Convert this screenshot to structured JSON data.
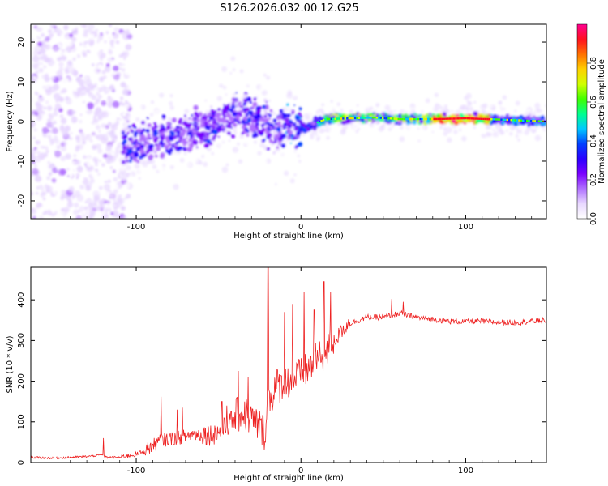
{
  "title": "S126.2026.032.00.12.G25",
  "chart_data": [
    {
      "type": "heatmap",
      "name": "spectrogram",
      "xlabel": "Height of straight line (km)",
      "ylabel": "Frequency (Hz)",
      "xlim": [
        -164,
        149
      ],
      "ylim": [
        -24.5,
        24.5
      ],
      "xticks": [
        -100,
        0,
        100
      ],
      "yticks": [
        -20,
        -10,
        0,
        10,
        20
      ],
      "colorbar": {
        "label": "Normalized spectral amplitude",
        "range": [
          0,
          1
        ],
        "ticks": [
          "0.0",
          "0.2",
          "0.4",
          "0.6",
          "0.8"
        ],
        "colors": [
          "#ffffff",
          "#e8d8ff",
          "#b070ff",
          "#7a00ff",
          "#2a00ff",
          "#0040ff",
          "#00c8ff",
          "#00ff90",
          "#40ff00",
          "#d0ff00",
          "#ffd000",
          "#ff7000",
          "#ff1020",
          "#ff0090"
        ]
      },
      "ridge": [
        {
          "x": -107,
          "f": -6.0
        },
        {
          "x": -95,
          "f": -5.5
        },
        {
          "x": -85,
          "f": -4.5
        },
        {
          "x": -75,
          "f": -4.0
        },
        {
          "x": -65,
          "f": -2.5
        },
        {
          "x": -55,
          "f": -1.5
        },
        {
          "x": -45,
          "f": 1.0
        },
        {
          "x": -38,
          "f": 2.5
        },
        {
          "x": -30,
          "f": 1.0
        },
        {
          "x": -22,
          "f": 0.5
        },
        {
          "x": -15,
          "f": -3.0
        },
        {
          "x": -8,
          "f": 0.5
        },
        {
          "x": -3,
          "f": -2.5
        },
        {
          "x": 5,
          "f": -1.0
        },
        {
          "x": 15,
          "f": 0.6
        },
        {
          "x": 30,
          "f": 0.8
        },
        {
          "x": 45,
          "f": 1.0
        },
        {
          "x": 60,
          "f": 0.6
        },
        {
          "x": 80,
          "f": 0.6
        },
        {
          "x": 100,
          "f": 0.8
        },
        {
          "x": 120,
          "f": 0.5
        },
        {
          "x": 149,
          "f": 0.0
        }
      ]
    },
    {
      "type": "line",
      "name": "snr",
      "xlabel": "Height of straight line (km)",
      "ylabel": "SNR (10 * v/v)",
      "xlim": [
        -164,
        149
      ],
      "ylim": [
        0,
        480
      ],
      "xticks": [
        -100,
        0,
        100
      ],
      "yticks": [
        0,
        100,
        200,
        300,
        400
      ],
      "color": "#ee2222",
      "x": [
        -164,
        -150,
        -130,
        -121,
        -118,
        -110,
        -100,
        -90,
        -85,
        -75,
        -65,
        -55,
        -48,
        -42,
        -35,
        -28,
        -25,
        -22,
        -20,
        -18,
        -15,
        -10,
        -5,
        0,
        5,
        10,
        15,
        20,
        25,
        30,
        40,
        50,
        60,
        65,
        70,
        80,
        90,
        100,
        110,
        120,
        130,
        140,
        149
      ],
      "values": [
        12,
        10,
        14,
        18,
        12,
        12,
        18,
        35,
        50,
        55,
        65,
        60,
        70,
        95,
        110,
        85,
        75,
        60,
        140,
        150,
        175,
        180,
        195,
        200,
        220,
        240,
        250,
        290,
        320,
        340,
        355,
        355,
        365,
        360,
        355,
        350,
        345,
        345,
        345,
        343,
        342,
        345,
        348
      ],
      "spikes": [
        {
          "x": -120,
          "y": 60
        },
        {
          "x": -85,
          "y": 162
        },
        {
          "x": -75,
          "y": 130
        },
        {
          "x": -72,
          "y": 135
        },
        {
          "x": -48,
          "y": 150
        },
        {
          "x": -45,
          "y": 140
        },
        {
          "x": -38,
          "y": 225
        },
        {
          "x": -32,
          "y": 210
        },
        {
          "x": -20,
          "y": 480
        },
        {
          "x": -10,
          "y": 370
        },
        {
          "x": -5,
          "y": 390
        },
        {
          "x": 2,
          "y": 420
        },
        {
          "x": 8,
          "y": 375
        },
        {
          "x": 14,
          "y": 445
        },
        {
          "x": 18,
          "y": 420
        },
        {
          "x": 55,
          "y": 402
        },
        {
          "x": 62,
          "y": 395
        }
      ]
    }
  ]
}
